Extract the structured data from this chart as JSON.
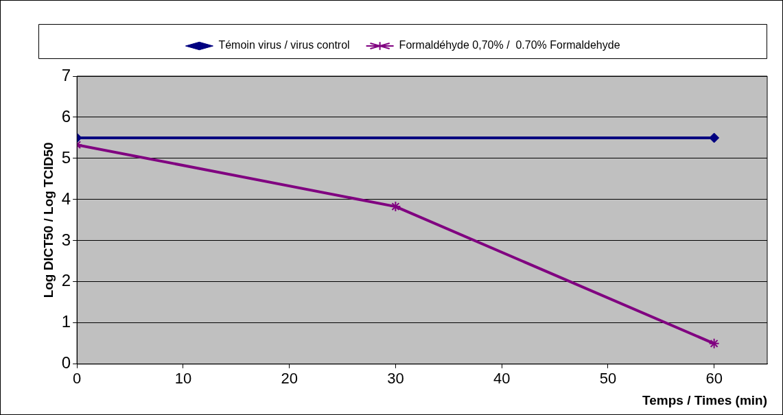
{
  "chart_data": {
    "type": "line",
    "xlabel": "Temps / Times (min)",
    "ylabel": "Log DICT50 / Log TCID50",
    "x": [
      0,
      30,
      60
    ],
    "series": [
      {
        "name": "Témoin virus / virus control",
        "color": "#000080",
        "values": [
          5.5,
          5.5
        ],
        "x": [
          0,
          60
        ],
        "marker": "diamond"
      },
      {
        "name": "Formaldéhyde 0,70% /  0.70% Formaldehyde",
        "color": "#800080",
        "values": [
          5.33,
          3.83,
          0.5
        ],
        "marker": "cross"
      }
    ],
    "xlim": [
      0,
      65
    ],
    "xticks": [
      0,
      10,
      20,
      30,
      40,
      50,
      60
    ],
    "ylim": [
      0,
      7
    ],
    "yticks": [
      0,
      1,
      2,
      3,
      4,
      5,
      6,
      7
    ],
    "grid": "y",
    "legend": "top",
    "line_style": "solid"
  }
}
